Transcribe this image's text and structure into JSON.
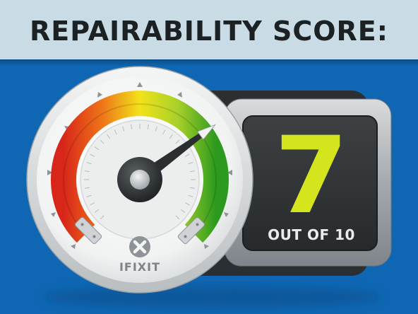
{
  "header": {
    "title": "REPAIRABILITY SCORE:"
  },
  "score": {
    "value": "7",
    "caption": "OUT OF 10",
    "max": 10,
    "level": 7
  },
  "gauge": {
    "brand": "IFIXIT",
    "logo_icon": "ifixit-x-icon"
  },
  "colors": {
    "background": "#0f67b3",
    "header": "#c9dbe4",
    "score_digit": "#d4e51e",
    "gauge_red": "#d8261a",
    "gauge_yellow": "#f2e21a",
    "gauge_green": "#2c9a1e"
  }
}
